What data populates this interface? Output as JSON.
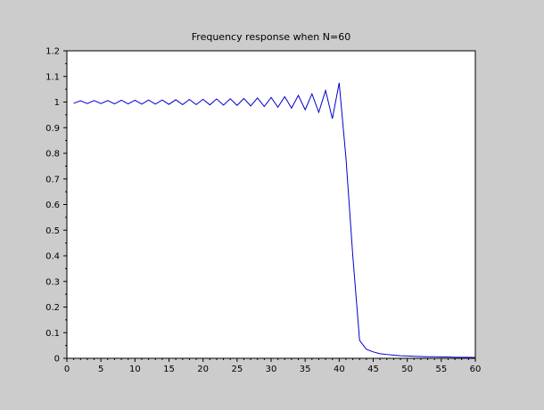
{
  "chart_data": {
    "type": "line",
    "title": "Frequency response when N=60",
    "xlabel": "",
    "ylabel": "",
    "xlim": [
      0,
      60
    ],
    "ylim": [
      0,
      1.2
    ],
    "xticks": [
      0,
      5,
      10,
      15,
      20,
      25,
      30,
      35,
      40,
      45,
      50,
      55,
      60
    ],
    "xtick_labels": [
      "0",
      "5",
      "10",
      "15",
      "20",
      "25",
      "30",
      "35",
      "40",
      "45",
      "50",
      "55",
      "60"
    ],
    "yticks": [
      0,
      0.1,
      0.2,
      0.3,
      0.4,
      0.5,
      0.6,
      0.7,
      0.8,
      0.9,
      1,
      1.1,
      1.2
    ],
    "ytick_labels": [
      "0",
      "0.1",
      "0.2",
      "0.3",
      "0.4",
      "0.5",
      "0.6",
      "0.7",
      "0.8",
      "0.9",
      "1",
      "1.1",
      "1.2"
    ],
    "grid": false,
    "legend": "none",
    "line_color": "#0000cc",
    "background_color": "#cccccc",
    "plot_background_color": "#ffffff",
    "series": [
      {
        "x": [
          1,
          2,
          3,
          4,
          5,
          6,
          7,
          8,
          9,
          10,
          11,
          12,
          13,
          14,
          15,
          16,
          17,
          18,
          19,
          20,
          21,
          22,
          23,
          24,
          25,
          26,
          27,
          28,
          29,
          30,
          31,
          32,
          33,
          34,
          35,
          36,
          37,
          38,
          39,
          40,
          41,
          42,
          43,
          44,
          45,
          46,
          47,
          48,
          49,
          50,
          51,
          52,
          53,
          54,
          55,
          56,
          57,
          58,
          59,
          60
        ],
        "y": [
          0.995,
          1.005,
          0.994,
          1.006,
          0.994,
          1.006,
          0.993,
          1.007,
          0.993,
          1.007,
          0.992,
          1.008,
          0.992,
          1.008,
          0.991,
          1.009,
          0.99,
          1.01,
          0.99,
          1.011,
          0.989,
          1.012,
          0.988,
          1.013,
          0.987,
          1.014,
          0.985,
          1.016,
          0.983,
          1.018,
          0.98,
          1.021,
          0.976,
          1.026,
          0.97,
          1.032,
          0.96,
          1.045,
          0.935,
          1.075,
          0.78,
          0.4,
          0.07,
          0.035,
          0.025,
          0.018,
          0.015,
          0.012,
          0.01,
          0.009,
          0.008,
          0.007,
          0.006,
          0.006,
          0.005,
          0.005,
          0.004,
          0.004,
          0.004,
          0.003
        ]
      }
    ]
  }
}
